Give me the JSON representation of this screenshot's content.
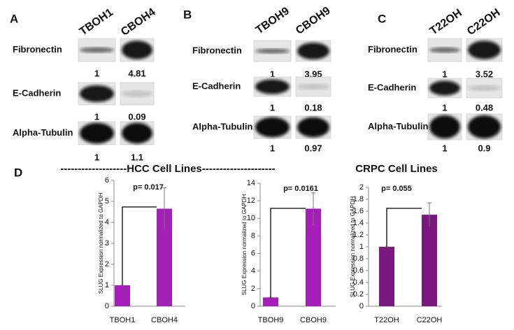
{
  "blots": [
    {
      "label": "A",
      "lanes": [
        "TBOH1",
        "CBOH4"
      ],
      "rows": [
        {
          "protein": "Fibronectin",
          "values": [
            1,
            4.81
          ]
        },
        {
          "protein": "E-Cadherin",
          "values": [
            1,
            0.09
          ]
        },
        {
          "protein": "Alpha-Tubulin",
          "values": [
            1,
            1.1
          ]
        }
      ]
    },
    {
      "label": "B",
      "lanes": [
        "TBOH9",
        "CBOH9"
      ],
      "rows": [
        {
          "protein": "Fibronectin",
          "values": [
            1,
            3.95
          ]
        },
        {
          "protein": "E-Cadherin",
          "values": [
            1,
            0.18
          ]
        },
        {
          "protein": "Alpha-Tubulin",
          "values": [
            1,
            0.97
          ]
        }
      ]
    },
    {
      "label": "C",
      "lanes": [
        "T22OH",
        "C22OH"
      ],
      "rows": [
        {
          "protein": "Fibronectin",
          "values": [
            1,
            3.52
          ]
        },
        {
          "protein": "E-Cadherin",
          "values": [
            1,
            0.48
          ]
        },
        {
          "protein": "Alpha-Tubulin",
          "values": [
            1,
            0.9
          ]
        }
      ]
    }
  ],
  "panel_d": {
    "label": "D",
    "hcc_header": "-------------------HCC Cell Lines---------------------",
    "crpc_header": "CRPC Cell Lines"
  },
  "chart_data": [
    {
      "type": "bar",
      "y_label": "SLUG Expression normalized to GAPDH",
      "annotation": "p= 0.017",
      "categories": [
        "TBOH1",
        "CBOH4"
      ],
      "values": [
        1,
        4.65
      ],
      "errors": [
        0,
        1.0
      ],
      "color": "#a41fb8",
      "ylim": [
        0,
        6
      ],
      "yticks": [
        0,
        1,
        2,
        3,
        4,
        5,
        6
      ]
    },
    {
      "type": "bar",
      "y_label": "SLUG Expression normalized to GAPDH",
      "annotation": "p= 0.0161",
      "categories": [
        "TBOH9",
        "CBOH9"
      ],
      "values": [
        1,
        11.1
      ],
      "errors": [
        0,
        1.8
      ],
      "color": "#a41fb8",
      "ylim": [
        0,
        14
      ],
      "yticks": [
        0,
        2,
        4,
        6,
        8,
        10,
        12,
        14
      ]
    },
    {
      "type": "bar",
      "y_label": "SLUG Expression normalized to GAPDH",
      "annotation": "p= 0.055",
      "categories": [
        "T22OH",
        "C22OH"
      ],
      "values": [
        1,
        1.54
      ],
      "errors": [
        0,
        0.2
      ],
      "color": "#7a1880",
      "ylim": [
        0,
        2
      ],
      "yticks": [
        0,
        0.2,
        0.4,
        0.6,
        0.8,
        1,
        1.2,
        1.4,
        1.6,
        1.8,
        2
      ]
    }
  ]
}
